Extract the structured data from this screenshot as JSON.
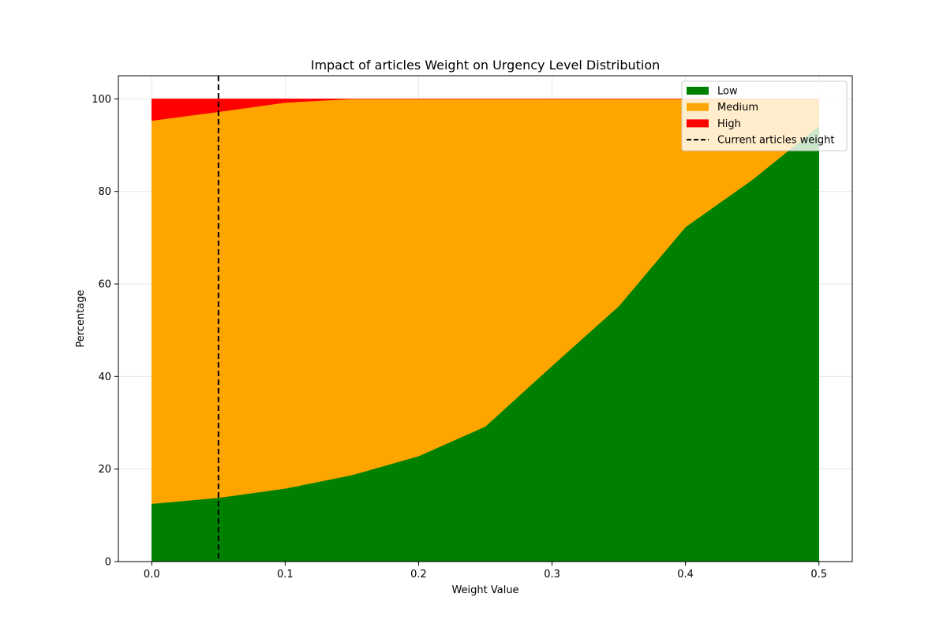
{
  "chart_data": {
    "type": "area",
    "stacked": true,
    "title": "Impact of articles Weight on Urgency Level Distribution",
    "xlabel": "Weight Value",
    "ylabel": "Percentage",
    "xlim": [
      -0.025,
      0.525
    ],
    "ylim": [
      0,
      105
    ],
    "xticks": [
      "0.0",
      "0.1",
      "0.2",
      "0.3",
      "0.4",
      "0.5"
    ],
    "yticks": [
      "0",
      "20",
      "40",
      "60",
      "80",
      "100"
    ],
    "grid": true,
    "legend_position": "top-right",
    "x": [
      0.0,
      0.05,
      0.1,
      0.15,
      0.2,
      0.25,
      0.3,
      0.35,
      0.4,
      0.45,
      0.5
    ],
    "series": [
      {
        "name": "Low",
        "color": "#008000",
        "values": [
          12.5,
          13.8,
          15.8,
          18.7,
          22.8,
          29.2,
          42.3,
          55.2,
          72.3,
          82.5,
          94.1
        ]
      },
      {
        "name": "Medium",
        "color": "#FFA500",
        "values": [
          82.8,
          83.4,
          83.4,
          81.3,
          77.2,
          70.8,
          57.7,
          44.8,
          27.7,
          17.5,
          5.9
        ]
      },
      {
        "name": "High",
        "color": "#FF0000",
        "values": [
          4.7,
          2.8,
          0.8,
          0.0,
          0.0,
          0.0,
          0.0,
          0.0,
          0.0,
          0.0,
          0.0
        ]
      }
    ],
    "reference_line": {
      "name": "Current articles weight",
      "x": 0.05,
      "style": "dashed",
      "color": "#000000"
    }
  }
}
